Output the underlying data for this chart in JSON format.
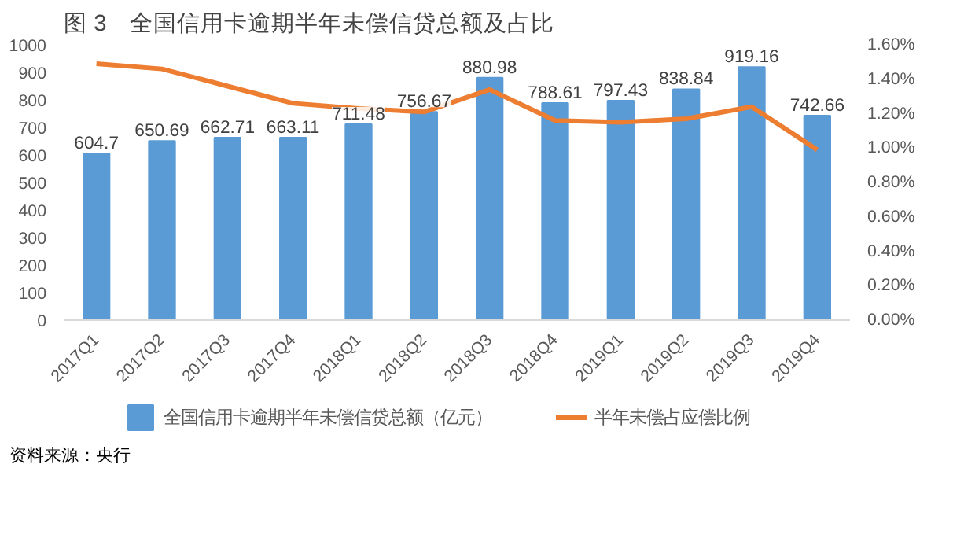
{
  "chart_data": {
    "type": "bar",
    "title": "图 3　全国信用卡逾期半年未偿信贷总额及占比",
    "categories": [
      "2017Q1",
      "2017Q2",
      "2017Q3",
      "2017Q4",
      "2018Q1",
      "2018Q2",
      "2018Q3",
      "2018Q4",
      "2019Q1",
      "2019Q2",
      "2019Q3",
      "2019Q4"
    ],
    "series": [
      {
        "name": "全国信用卡逾期半年未偿信贷总额（亿元）",
        "color": "#5b9bd5",
        "data_labels": true,
        "values": [
          604.7,
          650.69,
          662.71,
          663.11,
          711.48,
          756.67,
          880.98,
          788.61,
          797.43,
          838.84,
          919.16,
          742.66
        ]
      },
      {
        "name": "半年未偿占应偿比例",
        "type": "line",
        "axis": "y2",
        "color": "#ed7d31",
        "values": [
          1.49,
          1.46,
          1.36,
          1.26,
          1.23,
          1.21,
          1.34,
          1.16,
          1.15,
          1.17,
          1.24,
          0.99
        ]
      }
    ],
    "ylim": [
      0,
      1000
    ],
    "yticks": [
      0,
      100,
      200,
      300,
      400,
      500,
      600,
      700,
      800,
      900,
      1000
    ],
    "y2lim": [
      0,
      1.6
    ],
    "y2ticks": [
      {
        "value": 0,
        "label": "0.00%"
      },
      {
        "value": 0.2,
        "label": "0.20%"
      },
      {
        "value": 0.4,
        "label": "0.40%"
      },
      {
        "value": 0.6,
        "label": "0.60%"
      },
      {
        "value": 0.8,
        "label": "0.80%"
      },
      {
        "value": 1.0,
        "label": "1.00%"
      },
      {
        "value": 1.2,
        "label": "1.20%"
      },
      {
        "value": 1.4,
        "label": "1.40%"
      },
      {
        "value": 1.6,
        "label": "1.60%"
      }
    ],
    "legend": "bottom",
    "annotations": [
      "资料来源：央行"
    ]
  }
}
